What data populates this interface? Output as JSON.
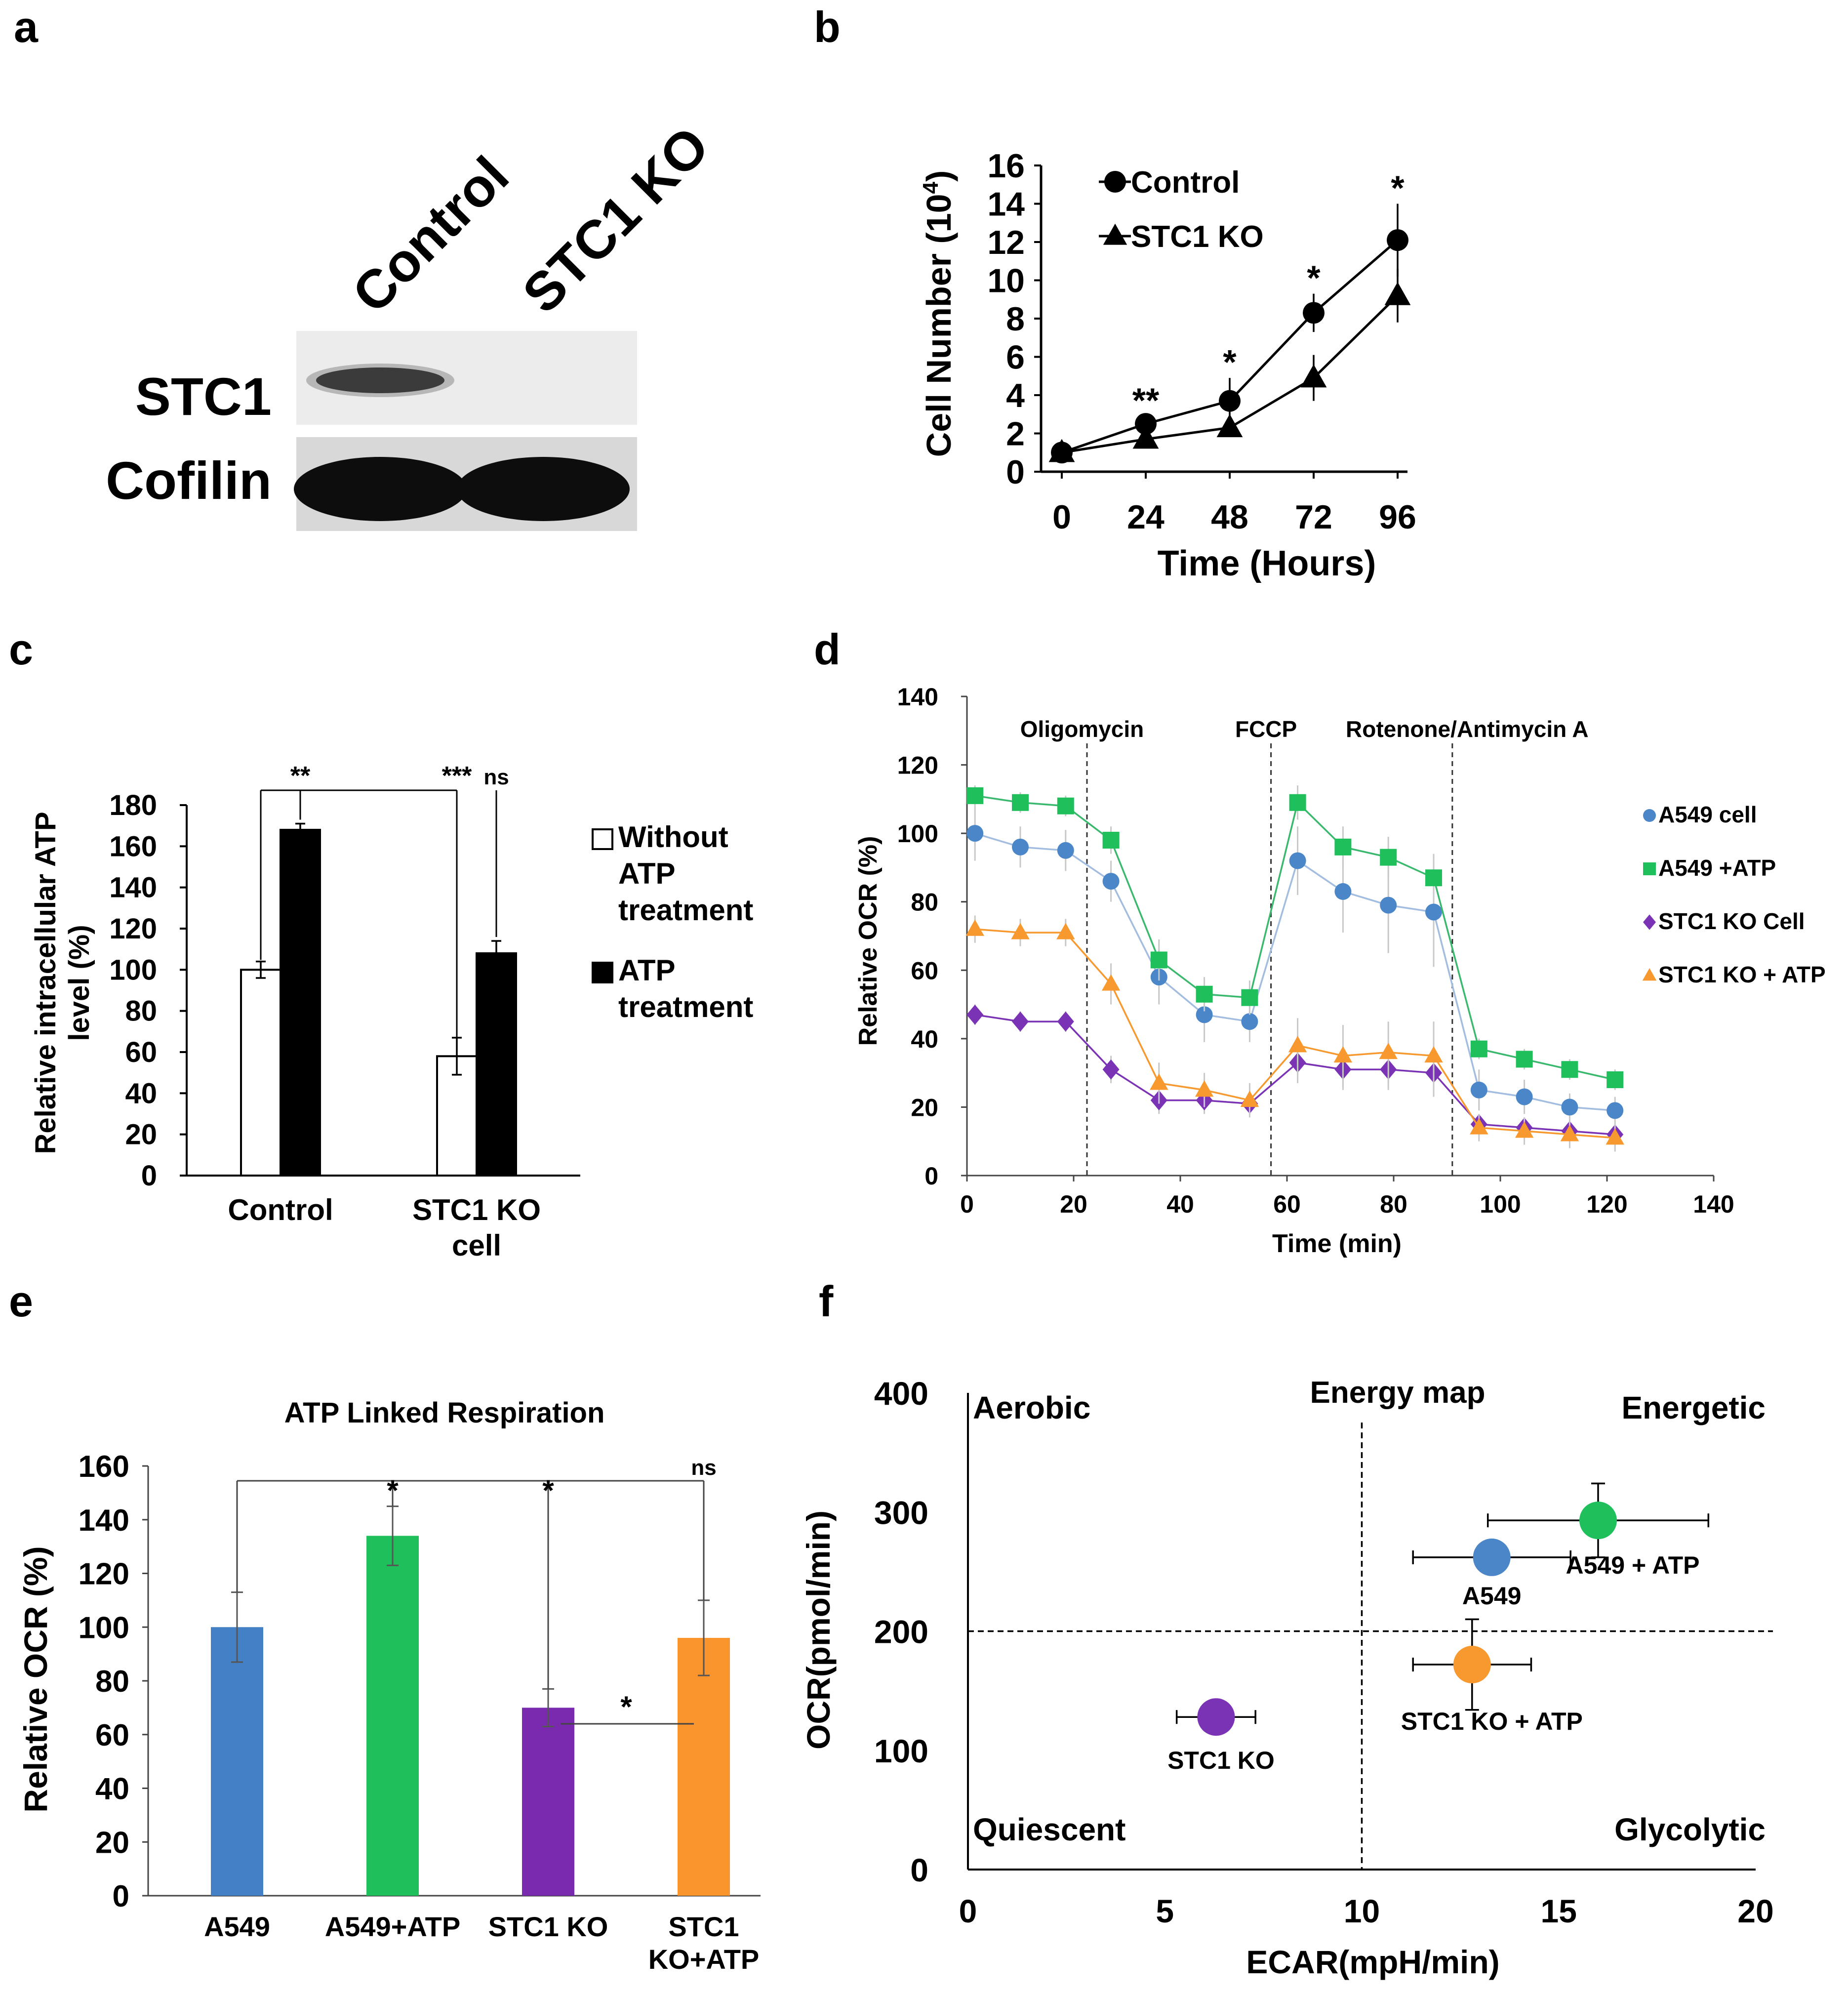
{
  "panels": {
    "a": {
      "letter": "a",
      "lanes": [
        "Control",
        "STC1 KO"
      ],
      "rows": [
        "STC1",
        "Cofilin"
      ]
    }
  },
  "chart_data": [
    {
      "panel": "b",
      "letter": "b",
      "type": "line",
      "xlabel": "Time (Hours)",
      "ylabel": "Cell Number (10",
      "ylabel_sup": "4",
      "ylabel_end": ")",
      "x": [
        0,
        24,
        48,
        72,
        96
      ],
      "xlim": [
        0,
        96
      ],
      "ylim": [
        0,
        16
      ],
      "yticks": [
        0,
        2,
        4,
        6,
        8,
        10,
        12,
        14,
        16
      ],
      "legend_position": "top-left",
      "series": [
        {
          "name": "Control",
          "marker": "circle",
          "values": [
            1.0,
            2.5,
            3.7,
            8.3,
            12.1
          ],
          "err": [
            0.2,
            0.4,
            1.2,
            1.0,
            1.9
          ]
        },
        {
          "name": "STC1 KO",
          "marker": "triangle",
          "values": [
            1.0,
            1.7,
            2.3,
            4.9,
            9.2
          ],
          "err": [
            0.2,
            0.3,
            0.3,
            1.2,
            1.4
          ]
        }
      ],
      "annotations": [
        {
          "x": 24,
          "text": "**"
        },
        {
          "x": 48,
          "text": "*"
        },
        {
          "x": 72,
          "text": "*"
        },
        {
          "x": 96,
          "text": "*"
        }
      ]
    },
    {
      "panel": "c",
      "letter": "c",
      "type": "bar",
      "ylabel": "Relative intracellular ATP level (%)",
      "categories": [
        "Control",
        "STC1 KO cell"
      ],
      "ylim": [
        0,
        180
      ],
      "yticks": [
        0,
        20,
        40,
        60,
        80,
        100,
        120,
        140,
        160,
        180
      ],
      "legend_position": "right",
      "series": [
        {
          "name": "Without ATP treatment",
          "color": "#ffffff",
          "values": [
            100,
            58
          ],
          "err": [
            4,
            9
          ]
        },
        {
          "name": "ATP treatment",
          "color": "#000000",
          "values": [
            168,
            108
          ],
          "err": [
            3,
            6
          ]
        }
      ],
      "significance": [
        "**",
        "***",
        "ns"
      ]
    },
    {
      "panel": "d",
      "letter": "d",
      "type": "line",
      "xlabel": "Time (min)",
      "ylabel": "Relative OCR (%)",
      "xlim": [
        0,
        140
      ],
      "ylim": [
        0,
        140
      ],
      "xticks": [
        0,
        20,
        40,
        60,
        80,
        100,
        120,
        140
      ],
      "yticks": [
        0,
        20,
        40,
        60,
        80,
        100,
        120,
        140
      ],
      "x": [
        1.5,
        10,
        18.5,
        27,
        36,
        44.5,
        53,
        62,
        70.5,
        79,
        87.5,
        96,
        104.5,
        113,
        121.5
      ],
      "injections": [
        {
          "x": 22.5,
          "label": "Oligomycin"
        },
        {
          "x": 57,
          "label": "FCCP"
        },
        {
          "x": 91,
          "label": "Rotenone/Antimycin A"
        }
      ],
      "legend_position": "right",
      "series": [
        {
          "name": "A549 cell",
          "color": "#4a86c8",
          "line": "#a3bde0",
          "marker": "circle",
          "values": [
            100,
            96,
            95,
            86,
            58,
            47,
            45,
            92,
            83,
            79,
            77,
            25,
            23,
            20,
            19
          ],
          "err": [
            8,
            6,
            6,
            6,
            8,
            8,
            6,
            10,
            12,
            14,
            16,
            6,
            5,
            4,
            4
          ]
        },
        {
          "name": "A549 +ATP",
          "color": "#1fbf5b",
          "line": "#3ab86e",
          "marker": "square",
          "values": [
            111,
            109,
            108,
            98,
            63,
            53,
            52,
            109,
            96,
            93,
            87,
            37,
            34,
            31,
            28
          ],
          "err": [
            3,
            3,
            3,
            4,
            6,
            5,
            5,
            5,
            6,
            6,
            7,
            3,
            3,
            3,
            3
          ]
        },
        {
          "name": "STC1 KO Cell",
          "color": "#7b33b5",
          "line": "#7b33b5",
          "marker": "diamond",
          "values": [
            47,
            45,
            45,
            31,
            22,
            22,
            21,
            33,
            31,
            31,
            30,
            15,
            14,
            13,
            12
          ],
          "err": [
            3,
            3,
            3,
            4,
            4,
            4,
            3,
            6,
            6,
            6,
            7,
            3,
            3,
            3,
            3
          ]
        },
        {
          "name": "STC1 KO + ATP",
          "color": "#f7992e",
          "line": "#f7992e",
          "marker": "triangle",
          "values": [
            72,
            71,
            71,
            56,
            27,
            25,
            22,
            38,
            35,
            36,
            35,
            14,
            13,
            12,
            11
          ],
          "err": [
            4,
            4,
            4,
            6,
            6,
            5,
            5,
            8,
            9,
            9,
            10,
            4,
            4,
            4,
            4
          ]
        }
      ]
    },
    {
      "panel": "e",
      "letter": "e",
      "type": "bar",
      "title": "ATP Linked Respiration",
      "ylabel": "Relative OCR (%)",
      "categories": [
        "A549",
        "A549+ATP",
        "STC1 KO",
        "STC1 KO+ATP"
      ],
      "category_lines": [
        [
          "A549"
        ],
        [
          "A549+ATP"
        ],
        [
          "STC1 KO"
        ],
        [
          "STC1",
          "KO+ATP"
        ]
      ],
      "values": [
        100,
        134,
        70,
        96
      ],
      "err": [
        13,
        11,
        7,
        14
      ],
      "colors": [
        "#4380c5",
        "#1fbf5b",
        "#7a2aae",
        "#fa952e"
      ],
      "ylim": [
        0,
        160
      ],
      "yticks": [
        0,
        20,
        40,
        60,
        80,
        100,
        120,
        140,
        160
      ],
      "significance": [
        "*",
        "*",
        "ns",
        "*"
      ]
    },
    {
      "panel": "f",
      "letter": "f",
      "type": "scatter",
      "title": "Energy map",
      "xlabel": "ECAR(mpH/min)",
      "ylabel": "OCR(pmol/min)",
      "xlim": [
        0,
        20
      ],
      "ylim": [
        0,
        400
      ],
      "xticks": [
        0,
        5,
        10,
        15,
        20
      ],
      "yticks": [
        0,
        100,
        200,
        300,
        400
      ],
      "quadrants": [
        "Aerobic",
        "Energetic",
        "Quiescent",
        "Glycolytic"
      ],
      "divider": {
        "x": 10,
        "y": 200
      },
      "points": [
        {
          "name": "A549",
          "x": 13.3,
          "y": 262,
          "xerr": 2.0,
          "yerr": 0,
          "color": "#4a86c8"
        },
        {
          "name": "A549 + ATP",
          "x": 16.0,
          "y": 293,
          "xerr": 2.8,
          "yerr": 31,
          "color": "#1fbf5b"
        },
        {
          "name": "STC1 KO + ATP",
          "x": 12.8,
          "y": 172,
          "xerr": 1.5,
          "yerr": 38,
          "color": "#f7992e"
        },
        {
          "name": "STC1 KO",
          "x": 6.3,
          "y": 128,
          "xerr": 1.0,
          "yerr": 0,
          "color": "#7b33b5"
        }
      ]
    }
  ]
}
